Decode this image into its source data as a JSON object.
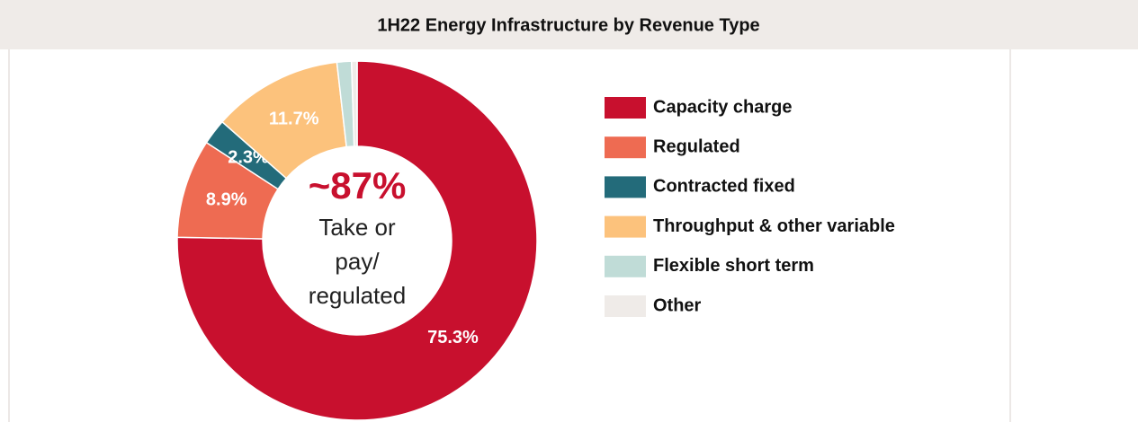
{
  "chart_data": {
    "type": "donut",
    "title": "1H22 Energy Infrastructure by Revenue Type",
    "categories": [
      "Capacity charge",
      "Regulated",
      "Contracted fixed",
      "Throughput & other variable",
      "Flexible short term",
      "Other"
    ],
    "values": [
      75.3,
      8.9,
      2.3,
      11.7,
      1.3,
      0.5
    ],
    "value_labels": [
      "75.3%",
      "8.9%",
      "2.3%",
      "11.7%",
      null,
      null
    ],
    "colors": [
      "#c8102e",
      "#ee6b52",
      "#236b7a",
      "#fcc27c",
      "#c0dcd7",
      "#efebe8"
    ],
    "center_text": "~87%",
    "center_subtext": [
      "Take or",
      "pay/",
      "regulated"
    ],
    "legend": "right"
  }
}
